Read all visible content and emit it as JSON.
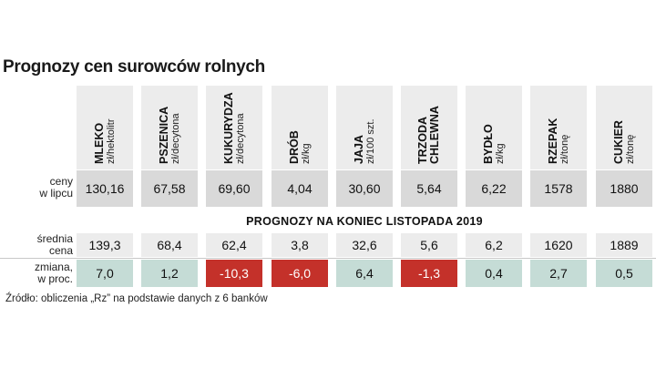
{
  "title": "Prognozy cen surowców rolnych",
  "row_labels": {
    "lipiec": [
      "ceny",
      "w lipcu"
    ],
    "srednia": [
      "średnia",
      "cena"
    ],
    "zmiana": [
      "zmiana,",
      "w proc."
    ]
  },
  "forecast_heading": "PROGNOZY NA KONIEC LISTOPADA 2019",
  "source": "Źródło: obliczenia „Rz” na podstawie danych z 6 banków",
  "colors": {
    "positive": "#c5dcd6",
    "negative": "#c4312a",
    "header": "#ececec",
    "july_row": "#d9d9d9"
  },
  "chart_data": {
    "type": "table",
    "title": "Prognozy cen surowców rolnych",
    "columns": [
      {
        "name": "MLEKO",
        "unit": "zł/hektolitr",
        "july": "130,16",
        "avg": "139,3",
        "change": "7,0",
        "change_value": 7.0
      },
      {
        "name": "PSZENICA",
        "unit": "zł/decytona",
        "july": "67,58",
        "avg": "68,4",
        "change": "1,2",
        "change_value": 1.2
      },
      {
        "name": "KUKURYDZA",
        "unit": "zł/decytona",
        "july": "69,60",
        "avg": "62,4",
        "change": "-10,3",
        "change_value": -10.3
      },
      {
        "name": "DRÓB",
        "unit": "zł/kg",
        "july": "4,04",
        "avg": "3,8",
        "change": "-6,0",
        "change_value": -6.0
      },
      {
        "name": "JAJA",
        "unit": "zł/100 szt.",
        "july": "30,60",
        "avg": "32,6",
        "change": "6,4",
        "change_value": 6.4
      },
      {
        "name": "TRZODA\nCHLEWNA",
        "unit": "",
        "july": "5,64",
        "avg": "5,6",
        "change": "-1,3",
        "change_value": -1.3
      },
      {
        "name": "BYDŁO",
        "unit": "zł/kg",
        "july": "6,22",
        "avg": "6,2",
        "change": "0,4",
        "change_value": 0.4
      },
      {
        "name": "RZEPAK",
        "unit": "zł/tonę",
        "july": "1578",
        "avg": "1620",
        "change": "2,7",
        "change_value": 2.7
      },
      {
        "name": "CUKIER",
        "unit": "zł/tonę",
        "july": "1880",
        "avg": "1889",
        "change": "0,5",
        "change_value": 0.5
      }
    ]
  }
}
